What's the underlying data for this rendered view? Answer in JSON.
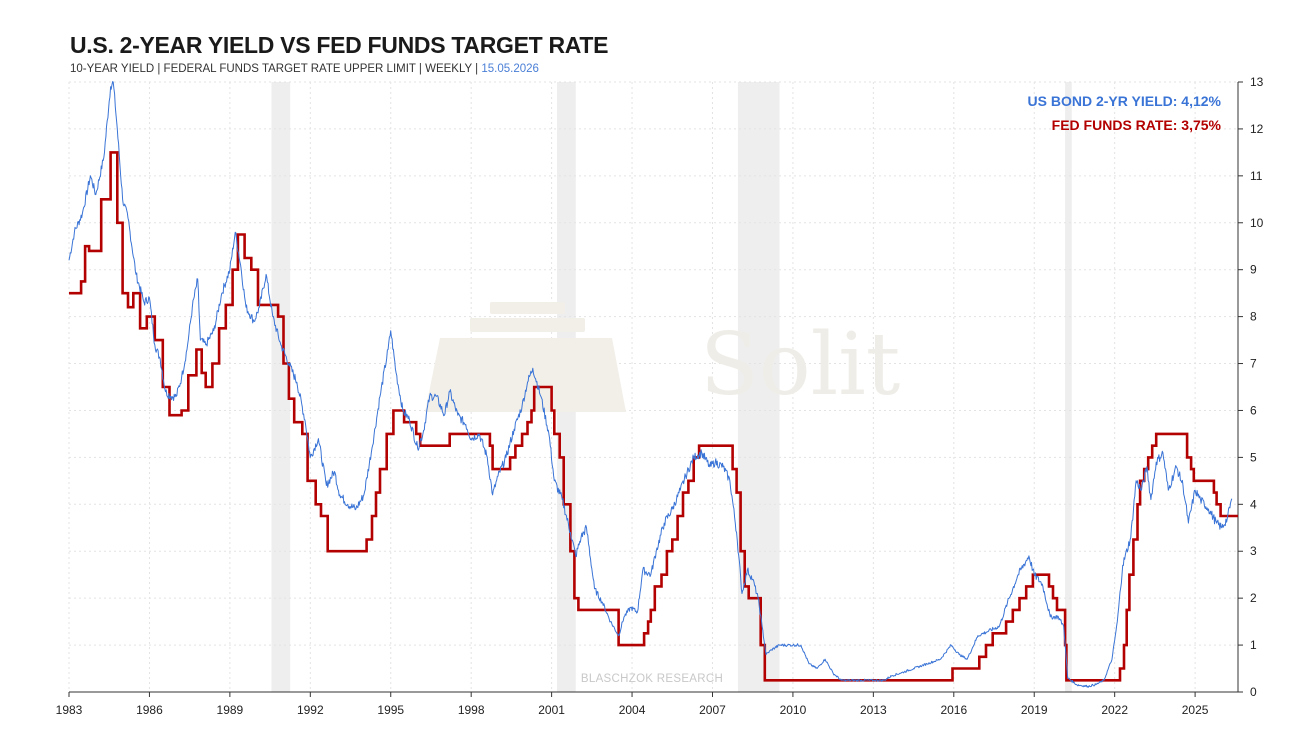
{
  "header": {
    "title": "U.S. 2-YEAR YIELD VS FED FUNDS TARGET RATE",
    "subtitle": "10-YEAR YIELD |  FEDERAL FUNDS TARGET RATE UPPER LIMIT | WEEKLY | ",
    "date": "15.05.2026"
  },
  "watermark": "Solit",
  "credit": "BLASCHZOK RESEARCH",
  "chart_data": {
    "type": "line",
    "xlim": [
      1983.0,
      2026.6
    ],
    "ylim": [
      0,
      13
    ],
    "x_ticks": [
      "1983",
      "1986",
      "1989",
      "1992",
      "1995",
      "1998",
      "2001",
      "2004",
      "2007",
      "2010",
      "2013",
      "2016",
      "2019",
      "2022",
      "2025"
    ],
    "y_ticks": [
      "0",
      "1",
      "2",
      "3",
      "4",
      "5",
      "6",
      "7",
      "8",
      "9",
      "10",
      "11",
      "12",
      "13"
    ],
    "y_axis_position": "right",
    "grid": true,
    "legend_position": "top-right",
    "legend": [
      {
        "label": "US BOND 2-YR YIELD: 4,12%",
        "color": "#3a74d6"
      },
      {
        "label": "FED FUNDS RATE: 3,75%",
        "color": "#b30000"
      }
    ],
    "shaded_periods": [
      [
        1990.55,
        1991.25
      ],
      [
        2001.2,
        2001.9
      ],
      [
        2007.95,
        2009.5
      ],
      [
        2020.15,
        2020.4
      ]
    ],
    "series": [
      {
        "name": "US BOND 2-YR YIELD",
        "color": "#3a74d6",
        "points": [
          [
            1983.0,
            9.2
          ],
          [
            1983.2,
            9.8
          ],
          [
            1983.5,
            10.2
          ],
          [
            1983.8,
            11.0
          ],
          [
            1984.0,
            10.6
          ],
          [
            1984.3,
            11.4
          ],
          [
            1984.55,
            12.9
          ],
          [
            1984.65,
            13.0
          ],
          [
            1984.8,
            12.0
          ],
          [
            1985.0,
            10.5
          ],
          [
            1985.2,
            10.1
          ],
          [
            1985.5,
            8.9
          ],
          [
            1985.8,
            8.3
          ],
          [
            1986.0,
            8.4
          ],
          [
            1986.2,
            7.4
          ],
          [
            1986.4,
            7.1
          ],
          [
            1986.6,
            6.4
          ],
          [
            1986.8,
            6.3
          ],
          [
            1987.0,
            6.3
          ],
          [
            1987.2,
            6.7
          ],
          [
            1987.4,
            7.3
          ],
          [
            1987.6,
            8.2
          ],
          [
            1987.8,
            8.8
          ],
          [
            1987.9,
            7.5
          ],
          [
            1988.1,
            7.4
          ],
          [
            1988.4,
            7.7
          ],
          [
            1988.7,
            8.5
          ],
          [
            1989.0,
            9.0
          ],
          [
            1989.2,
            9.8
          ],
          [
            1989.4,
            9.1
          ],
          [
            1989.6,
            8.2
          ],
          [
            1989.9,
            7.9
          ],
          [
            1990.1,
            8.2
          ],
          [
            1990.35,
            8.9
          ],
          [
            1990.6,
            8.0
          ],
          [
            1990.9,
            7.4
          ],
          [
            1991.2,
            7.0
          ],
          [
            1991.5,
            6.6
          ],
          [
            1991.8,
            5.8
          ],
          [
            1992.0,
            5.0
          ],
          [
            1992.3,
            5.4
          ],
          [
            1992.6,
            4.4
          ],
          [
            1992.9,
            4.7
          ],
          [
            1993.1,
            4.2
          ],
          [
            1993.4,
            4.0
          ],
          [
            1993.7,
            3.9
          ],
          [
            1994.0,
            4.2
          ],
          [
            1994.3,
            5.2
          ],
          [
            1994.6,
            6.3
          ],
          [
            1994.9,
            7.3
          ],
          [
            1995.0,
            7.7
          ],
          [
            1995.2,
            6.8
          ],
          [
            1995.45,
            6.0
          ],
          [
            1995.7,
            5.8
          ],
          [
            1996.0,
            5.2
          ],
          [
            1996.2,
            5.5
          ],
          [
            1996.45,
            6.3
          ],
          [
            1996.7,
            6.3
          ],
          [
            1997.0,
            5.9
          ],
          [
            1997.2,
            6.4
          ],
          [
            1997.5,
            5.9
          ],
          [
            1997.8,
            5.7
          ],
          [
            1998.0,
            5.4
          ],
          [
            1998.3,
            5.5
          ],
          [
            1998.6,
            5.0
          ],
          [
            1998.8,
            4.2
          ],
          [
            1999.0,
            4.6
          ],
          [
            1999.3,
            5.0
          ],
          [
            1999.6,
            5.6
          ],
          [
            1999.9,
            6.1
          ],
          [
            2000.1,
            6.6
          ],
          [
            2000.3,
            6.9
          ],
          [
            2000.6,
            6.3
          ],
          [
            2000.9,
            5.5
          ],
          [
            2001.1,
            4.5
          ],
          [
            2001.4,
            4.1
          ],
          [
            2001.7,
            3.4
          ],
          [
            2001.9,
            2.9
          ],
          [
            2002.1,
            3.3
          ],
          [
            2002.3,
            3.5
          ],
          [
            2002.6,
            2.2
          ],
          [
            2002.9,
            1.9
          ],
          [
            2003.2,
            1.5
          ],
          [
            2003.5,
            1.2
          ],
          [
            2003.7,
            1.6
          ],
          [
            2003.95,
            1.8
          ],
          [
            2004.2,
            1.7
          ],
          [
            2004.4,
            2.6
          ],
          [
            2004.7,
            2.5
          ],
          [
            2004.9,
            3.0
          ],
          [
            2005.2,
            3.6
          ],
          [
            2005.5,
            3.9
          ],
          [
            2005.8,
            4.3
          ],
          [
            2006.0,
            4.6
          ],
          [
            2006.3,
            5.0
          ],
          [
            2006.6,
            5.1
          ],
          [
            2006.9,
            4.8
          ],
          [
            2007.1,
            4.9
          ],
          [
            2007.4,
            4.8
          ],
          [
            2007.65,
            4.5
          ],
          [
            2007.9,
            3.4
          ],
          [
            2008.1,
            2.1
          ],
          [
            2008.3,
            2.6
          ],
          [
            2008.5,
            2.4
          ],
          [
            2008.7,
            2.0
          ],
          [
            2008.85,
            1.4
          ],
          [
            2009.0,
            0.8
          ],
          [
            2009.2,
            0.9
          ],
          [
            2009.5,
            1.0
          ],
          [
            2009.8,
            1.0
          ],
          [
            2010.0,
            1.0
          ],
          [
            2010.3,
            1.0
          ],
          [
            2010.6,
            0.6
          ],
          [
            2010.9,
            0.5
          ],
          [
            2011.2,
            0.7
          ],
          [
            2011.5,
            0.4
          ],
          [
            2011.8,
            0.25
          ],
          [
            2012.0,
            0.25
          ],
          [
            2012.5,
            0.25
          ],
          [
            2013.0,
            0.25
          ],
          [
            2013.4,
            0.25
          ],
          [
            2013.7,
            0.35
          ],
          [
            2014.0,
            0.4
          ],
          [
            2014.5,
            0.5
          ],
          [
            2015.0,
            0.6
          ],
          [
            2015.5,
            0.7
          ],
          [
            2015.9,
            1.0
          ],
          [
            2016.2,
            0.8
          ],
          [
            2016.5,
            0.7
          ],
          [
            2016.9,
            1.2
          ],
          [
            2017.3,
            1.3
          ],
          [
            2017.7,
            1.4
          ],
          [
            2018.0,
            1.9
          ],
          [
            2018.4,
            2.5
          ],
          [
            2018.8,
            2.9
          ],
          [
            2019.0,
            2.5
          ],
          [
            2019.3,
            2.3
          ],
          [
            2019.6,
            1.6
          ],
          [
            2019.9,
            1.6
          ],
          [
            2020.1,
            1.4
          ],
          [
            2020.25,
            0.3
          ],
          [
            2020.6,
            0.15
          ],
          [
            2021.0,
            0.12
          ],
          [
            2021.3,
            0.16
          ],
          [
            2021.6,
            0.25
          ],
          [
            2021.9,
            0.7
          ],
          [
            2022.1,
            1.5
          ],
          [
            2022.3,
            2.7
          ],
          [
            2022.6,
            3.3
          ],
          [
            2022.8,
            4.5
          ],
          [
            2023.0,
            4.3
          ],
          [
            2023.2,
            4.8
          ],
          [
            2023.35,
            4.1
          ],
          [
            2023.55,
            4.9
          ],
          [
            2023.8,
            5.1
          ],
          [
            2024.0,
            4.3
          ],
          [
            2024.3,
            4.8
          ],
          [
            2024.55,
            4.4
          ],
          [
            2024.75,
            3.6
          ],
          [
            2025.0,
            4.3
          ],
          [
            2025.2,
            4.1
          ],
          [
            2025.5,
            3.9
          ],
          [
            2025.8,
            3.6
          ],
          [
            2026.0,
            3.5
          ],
          [
            2026.2,
            3.7
          ],
          [
            2026.37,
            4.12
          ]
        ]
      },
      {
        "name": "FED FUNDS RATE",
        "color": "#b30000",
        "points": [
          [
            1983.0,
            8.5
          ],
          [
            1983.45,
            8.75
          ],
          [
            1983.6,
            9.5
          ],
          [
            1983.75,
            9.4
          ],
          [
            1984.2,
            10.5
          ],
          [
            1984.55,
            11.5
          ],
          [
            1984.8,
            10.0
          ],
          [
            1985.0,
            8.5
          ],
          [
            1985.2,
            8.2
          ],
          [
            1985.4,
            8.5
          ],
          [
            1985.65,
            7.75
          ],
          [
            1985.9,
            8.0
          ],
          [
            1986.2,
            7.5
          ],
          [
            1986.5,
            6.5
          ],
          [
            1986.75,
            5.9
          ],
          [
            1987.2,
            6.0
          ],
          [
            1987.45,
            6.75
          ],
          [
            1987.75,
            7.3
          ],
          [
            1987.95,
            6.8
          ],
          [
            1988.1,
            6.5
          ],
          [
            1988.35,
            7.0
          ],
          [
            1988.6,
            7.75
          ],
          [
            1988.85,
            8.25
          ],
          [
            1989.1,
            9.0
          ],
          [
            1989.3,
            9.75
          ],
          [
            1989.55,
            9.25
          ],
          [
            1989.8,
            9.0
          ],
          [
            1990.05,
            8.25
          ],
          [
            1990.6,
            8.25
          ],
          [
            1990.8,
            8.0
          ],
          [
            1991.0,
            7.0
          ],
          [
            1991.2,
            6.25
          ],
          [
            1991.4,
            5.75
          ],
          [
            1991.7,
            5.5
          ],
          [
            1991.9,
            4.5
          ],
          [
            1992.2,
            4.0
          ],
          [
            1992.4,
            3.75
          ],
          [
            1992.65,
            3.0
          ],
          [
            1993.0,
            3.0
          ],
          [
            1994.0,
            3.0
          ],
          [
            1994.1,
            3.25
          ],
          [
            1994.3,
            3.75
          ],
          [
            1994.45,
            4.25
          ],
          [
            1994.6,
            4.75
          ],
          [
            1994.85,
            5.5
          ],
          [
            1995.1,
            6.0
          ],
          [
            1995.5,
            5.75
          ],
          [
            1995.95,
            5.5
          ],
          [
            1996.1,
            5.25
          ],
          [
            1997.2,
            5.5
          ],
          [
            1998.7,
            5.25
          ],
          [
            1998.8,
            4.75
          ],
          [
            1999.45,
            5.0
          ],
          [
            1999.65,
            5.25
          ],
          [
            1999.9,
            5.5
          ],
          [
            2000.1,
            5.75
          ],
          [
            2000.25,
            6.0
          ],
          [
            2000.35,
            6.5
          ],
          [
            2000.95,
            6.5
          ],
          [
            2001.0,
            6.0
          ],
          [
            2001.1,
            5.5
          ],
          [
            2001.3,
            5.0
          ],
          [
            2001.45,
            4.0
          ],
          [
            2001.7,
            3.0
          ],
          [
            2001.85,
            2.0
          ],
          [
            2002.0,
            1.75
          ],
          [
            2002.9,
            1.75
          ],
          [
            2003.5,
            1.0
          ],
          [
            2004.45,
            1.25
          ],
          [
            2004.6,
            1.5
          ],
          [
            2004.7,
            1.75
          ],
          [
            2004.85,
            2.25
          ],
          [
            2005.1,
            2.5
          ],
          [
            2005.3,
            3.0
          ],
          [
            2005.5,
            3.25
          ],
          [
            2005.7,
            3.75
          ],
          [
            2005.9,
            4.25
          ],
          [
            2006.1,
            4.5
          ],
          [
            2006.3,
            5.0
          ],
          [
            2006.5,
            5.25
          ],
          [
            2007.6,
            5.25
          ],
          [
            2007.75,
            4.75
          ],
          [
            2007.9,
            4.25
          ],
          [
            2008.05,
            3.0
          ],
          [
            2008.2,
            2.25
          ],
          [
            2008.35,
            2.0
          ],
          [
            2008.8,
            1.0
          ],
          [
            2008.95,
            0.25
          ],
          [
            2015.95,
            0.5
          ],
          [
            2016.95,
            0.75
          ],
          [
            2017.2,
            1.0
          ],
          [
            2017.45,
            1.25
          ],
          [
            2017.95,
            1.5
          ],
          [
            2018.2,
            1.75
          ],
          [
            2018.45,
            2.0
          ],
          [
            2018.7,
            2.25
          ],
          [
            2018.95,
            2.5
          ],
          [
            2019.55,
            2.25
          ],
          [
            2019.7,
            2.0
          ],
          [
            2019.85,
            1.75
          ],
          [
            2020.15,
            1.0
          ],
          [
            2020.2,
            0.25
          ],
          [
            2022.2,
            0.5
          ],
          [
            2022.35,
            1.0
          ],
          [
            2022.45,
            1.75
          ],
          [
            2022.55,
            2.5
          ],
          [
            2022.7,
            3.25
          ],
          [
            2022.85,
            4.0
          ],
          [
            2022.95,
            4.5
          ],
          [
            2023.1,
            4.75
          ],
          [
            2023.25,
            5.0
          ],
          [
            2023.4,
            5.25
          ],
          [
            2023.55,
            5.5
          ],
          [
            2024.7,
            5.0
          ],
          [
            2024.85,
            4.75
          ],
          [
            2024.95,
            4.5
          ],
          [
            2025.7,
            4.25
          ],
          [
            2025.8,
            4.0
          ],
          [
            2025.95,
            3.75
          ],
          [
            2026.6,
            3.75
          ]
        ]
      }
    ]
  }
}
